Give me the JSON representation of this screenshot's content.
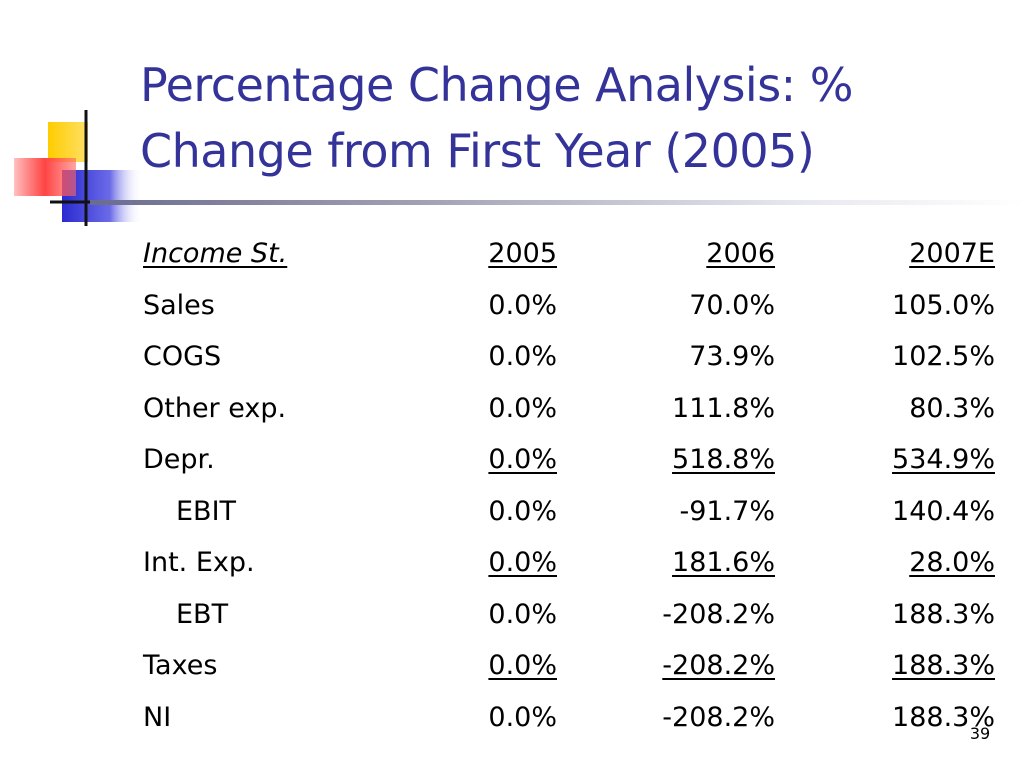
{
  "slide": {
    "title_line1": "Percentage Change Analysis: %",
    "title_line2": "Change from First Year (2005)",
    "page_number": "39"
  },
  "table": {
    "header": {
      "label": "Income St.",
      "columns": [
        "2005",
        "2006",
        "2007E"
      ]
    },
    "rows": [
      {
        "label": "Sales",
        "values": [
          "0.0%",
          "70.0%",
          "105.0%"
        ],
        "indent": false,
        "underline": false
      },
      {
        "label": "COGS",
        "values": [
          "0.0%",
          "73.9%",
          "102.5%"
        ],
        "indent": false,
        "underline": false
      },
      {
        "label": "Other exp.",
        "values": [
          "0.0%",
          "111.8%",
          "80.3%"
        ],
        "indent": false,
        "underline": false
      },
      {
        "label": "Depr.",
        "values": [
          "0.0%",
          "518.8%",
          "534.9%"
        ],
        "indent": false,
        "underline": true
      },
      {
        "label": "EBIT",
        "values": [
          "0.0%",
          "-91.7%",
          "140.4%"
        ],
        "indent": true,
        "underline": false
      },
      {
        "label": "Int. Exp.",
        "values": [
          "0.0%",
          "181.6%",
          "28.0%"
        ],
        "indent": false,
        "underline": true
      },
      {
        "label": "EBT",
        "values": [
          "0.0%",
          "-208.2%",
          "188.3%"
        ],
        "indent": true,
        "underline": false
      },
      {
        "label": "Taxes",
        "values": [
          "0.0%",
          "-208.2%",
          "188.3%"
        ],
        "indent": false,
        "underline": true
      },
      {
        "label": "NI",
        "values": [
          "0.0%",
          "-208.2%",
          "188.3%"
        ],
        "indent": false,
        "underline": false
      }
    ]
  },
  "colors": {
    "title": "#333399",
    "deco_yellow": "#ffcc00",
    "deco_blue": "#3333cc",
    "deco_red": "#ff3333"
  }
}
